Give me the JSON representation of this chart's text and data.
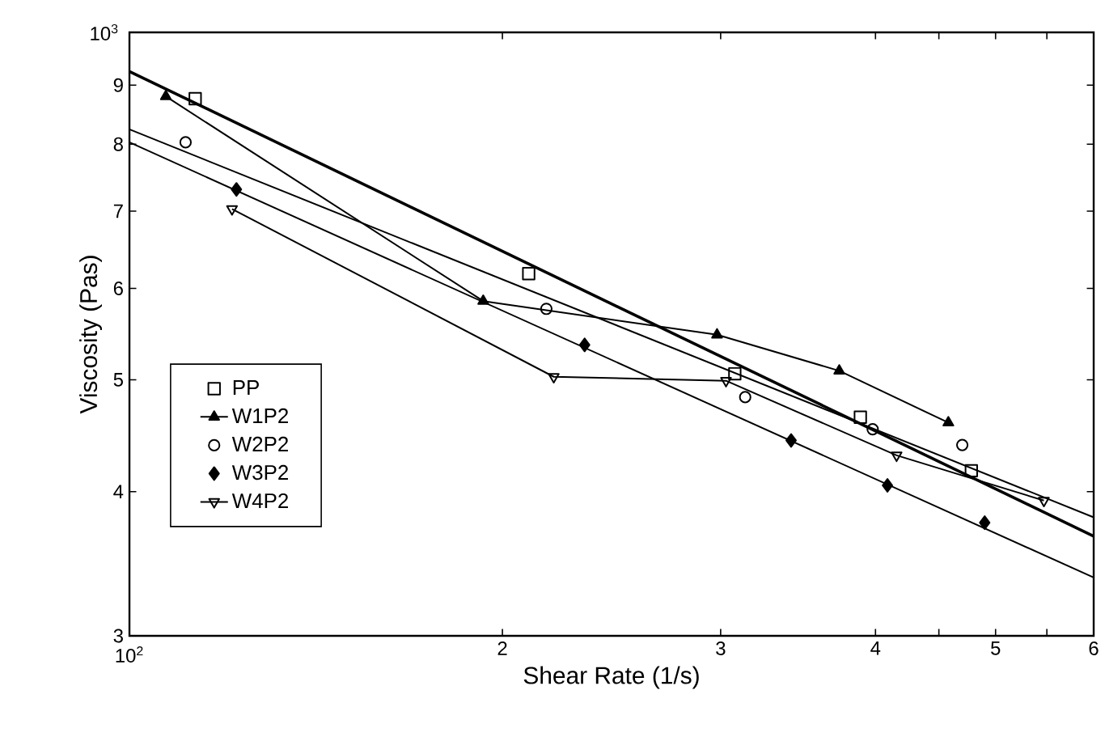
{
  "chart_data": {
    "type": "scatter",
    "xlabel": "Shear Rate (1/s)",
    "ylabel": "Viscosity (Pas)",
    "log": "xy",
    "grid": false,
    "legend": "bottom left",
    "xlim": [
      1,
      6
    ],
    "ylim": [
      3,
      10
    ],
    "annotations": [
      "10$^{2}$",
      "10$^{3}$"
    ],
    "xticks": [
      {
        "value": 1,
        "label": null
      },
      2,
      3,
      4,
      {
        "value": 4.5,
        "label": null
      },
      5,
      {
        "value": 5.5,
        "label": null
      },
      6
    ],
    "yticks": [
      3,
      4,
      5,
      6,
      7,
      8,
      9,
      {
        "value": 10,
        "label": null
      }
    ],
    "series": [
      {
        "name": "PP",
        "marker": "square",
        "color": "#000000",
        "x": [
          1.13,
          2.1,
          3.08,
          3.89,
          4.78
        ],
        "values": [
          8.76,
          6.18,
          5.06,
          4.64,
          4.17
        ]
      },
      {
        "name": "W1P2",
        "type": "line",
        "marker": "triangle",
        "color": "#000000",
        "x": [
          1.07,
          1.93,
          2.98,
          3.74,
          4.58
        ],
        "values": [
          8.8,
          5.85,
          5.47,
          5.09,
          4.59
        ]
      },
      {
        "name": "W2P2",
        "marker": "circle",
        "color": "#000000",
        "x": [
          1.11,
          2.17,
          3.14,
          3.98,
          4.7
        ],
        "values": [
          8.03,
          5.76,
          4.83,
          4.53,
          4.39
        ]
      },
      {
        "name": "W3P2",
        "marker": "diamond",
        "color": "#000000",
        "x": [
          1.22,
          2.33,
          3.42,
          4.09,
          4.9
        ],
        "values": [
          7.31,
          5.36,
          4.43,
          4.05,
          3.76
        ]
      },
      {
        "name": "W4P2",
        "type": "line",
        "marker": "triangle_down",
        "color": "#000000",
        "x": [
          1.21,
          2.2,
          3.03,
          4.16,
          5.47
        ],
        "values": [
          7.03,
          5.03,
          4.99,
          4.3,
          3.93
        ]
      },
      {
        "type": "line",
        "marker": "none",
        "color": "#000000",
        "x": [
          1,
          6
        ],
        "values": [
          9.25,
          3.66
        ]
      },
      {
        "type": "line",
        "marker": "none",
        "color": "#000000",
        "x": [
          1,
          6
        ],
        "values": [
          8.24,
          3.8
        ]
      },
      {
        "type": "line",
        "marker": "none",
        "color": "#000000",
        "x": [
          1,
          6
        ],
        "values": [
          8.03,
          3.37
        ]
      }
    ]
  }
}
